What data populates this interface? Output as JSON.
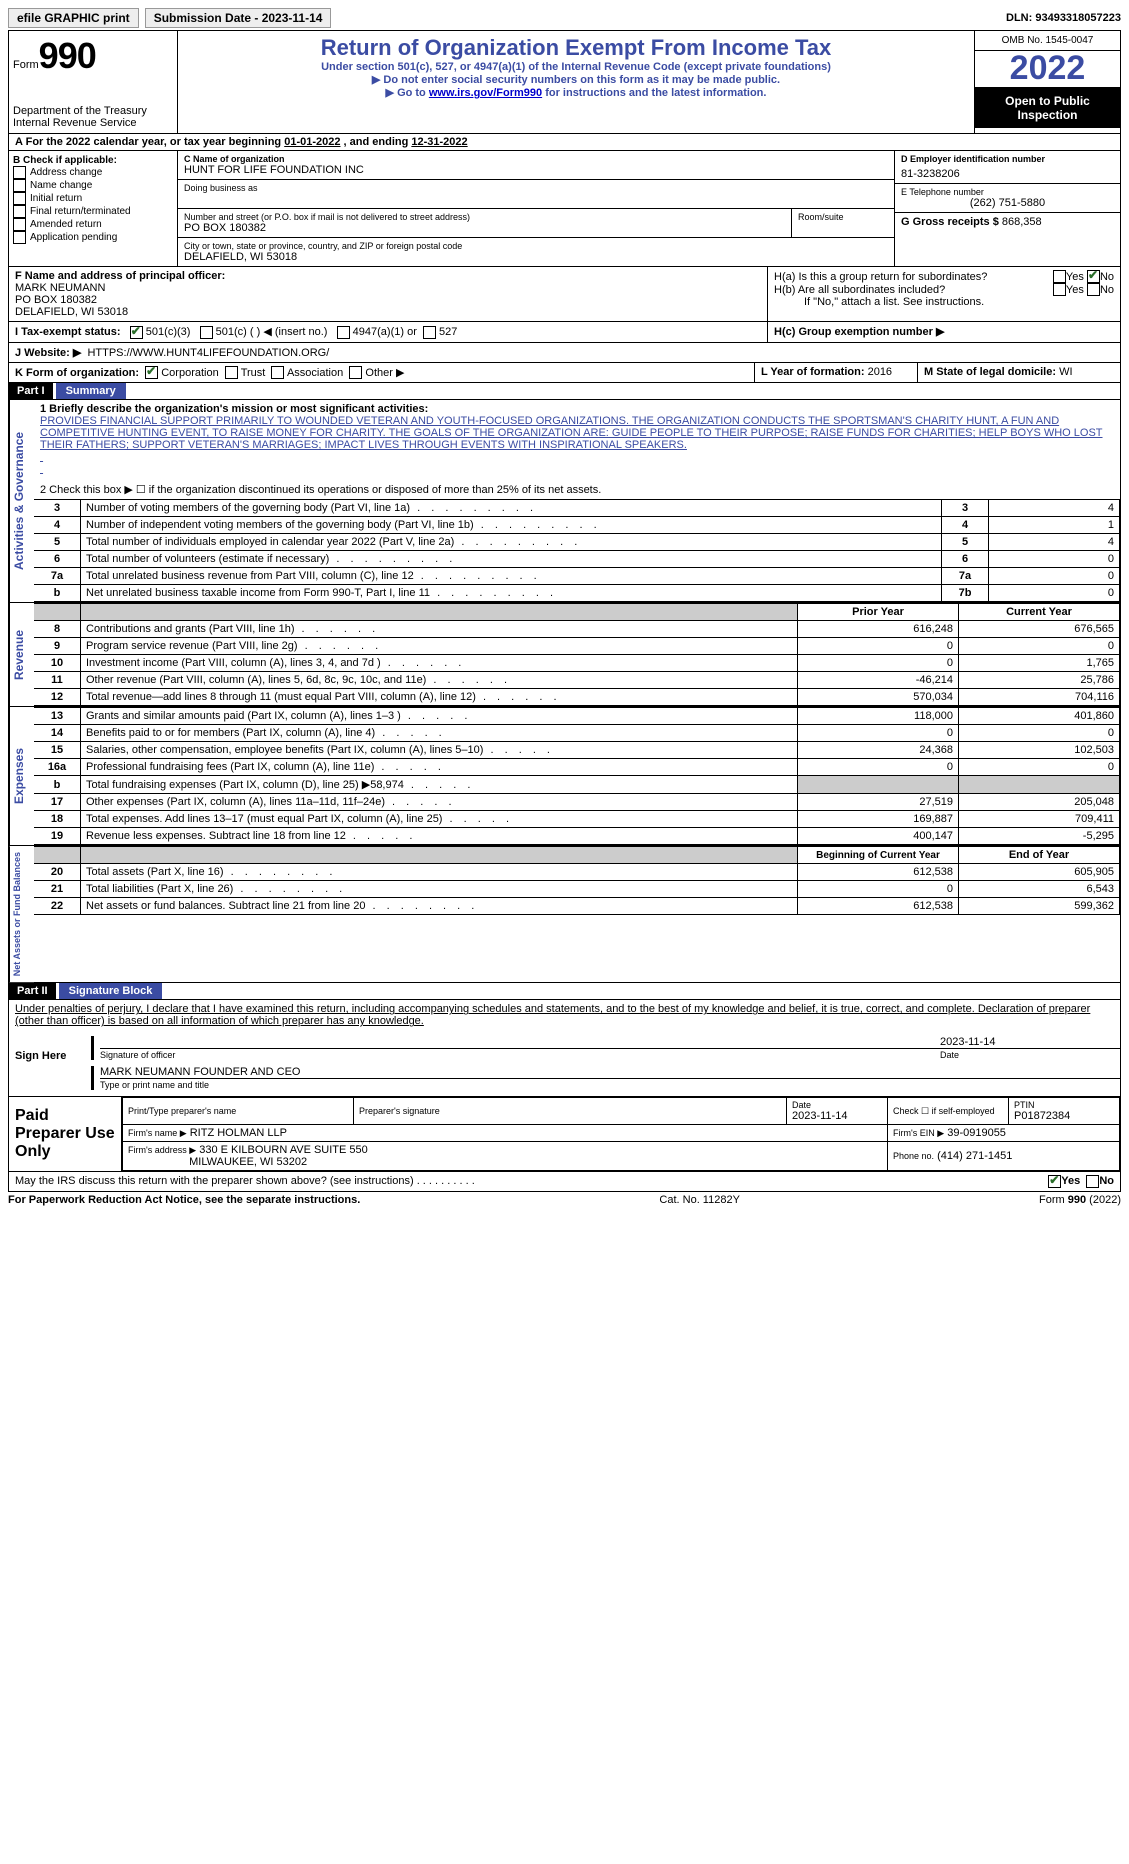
{
  "top": {
    "efile_label": "efile GRAPHIC print",
    "submission_date_label": "Submission Date - 2023-11-14",
    "dln_label": "DLN: 93493318057223"
  },
  "header": {
    "form_word": "Form",
    "form_no": "990",
    "dept": "Department of the Treasury",
    "irs": "Internal Revenue Service",
    "title": "Return of Organization Exempt From Income Tax",
    "subtitle": "Under section 501(c), 527, or 4947(a)(1) of the Internal Revenue Code (except private foundations)",
    "note1": "▶ Do not enter social security numbers on this form as it may be made public.",
    "note2_pre": "▶ Go to ",
    "note2_link": "www.irs.gov/Form990",
    "note2_post": " for instructions and the latest information.",
    "omb": "OMB No. 1545-0047",
    "year": "2022",
    "open": "Open to Public Inspection"
  },
  "A": {
    "text_pre": "For the 2022 calendar year, or tax year beginning ",
    "begin": "01-01-2022",
    "mid": " , and ending ",
    "end": "12-31-2022"
  },
  "B": {
    "label": "B Check if applicable:",
    "items": [
      "Address change",
      "Name change",
      "Initial return",
      "Final return/terminated",
      "Amended return",
      "Application pending"
    ]
  },
  "C": {
    "name_label": "C Name of organization",
    "name": "HUNT FOR LIFE FOUNDATION INC",
    "dba_label": "Doing business as",
    "street_label": "Number and street (or P.O. box if mail is not delivered to street address)",
    "room_label": "Room/suite",
    "street": "PO BOX 180382",
    "city_label": "City or town, state or province, country, and ZIP or foreign postal code",
    "city": "DELAFIELD, WI  53018"
  },
  "D": {
    "label": "D Employer identification number",
    "value": "81-3238206"
  },
  "E": {
    "label": "E Telephone number",
    "value": "(262) 751-5880"
  },
  "G": {
    "label": "G Gross receipts $",
    "value": "868,358"
  },
  "F": {
    "label": "F Name and address of principal officer:",
    "name": "MARK NEUMANN",
    "addr1": "PO BOX 180382",
    "addr2": "DELAFIELD, WI  53018"
  },
  "H": {
    "a_label": "H(a)  Is this a group return for subordinates?",
    "b_label": "H(b)  Are all subordinates included?",
    "b_note": "If \"No,\" attach a list. See instructions.",
    "c_label": "H(c)  Group exemption number ▶",
    "yes": "Yes",
    "no": "No"
  },
  "I": {
    "label": "I   Tax-exempt status:",
    "opts": [
      "501(c)(3)",
      "501(c) (   ) ◀ (insert no.)",
      "4947(a)(1) or",
      "527"
    ]
  },
  "J": {
    "label": "J   Website: ▶",
    "value": "HTTPS://WWW.HUNT4LIFEFOUNDATION.ORG/"
  },
  "K": {
    "label": "K Form of organization:",
    "opts": [
      "Corporation",
      "Trust",
      "Association",
      "Other ▶"
    ]
  },
  "L": {
    "label": "L Year of formation:",
    "value": "2016"
  },
  "M": {
    "label": "M State of legal domicile:",
    "value": "WI"
  },
  "part1": {
    "tag": "Part I",
    "title": "Summary",
    "line1_label": "1  Briefly describe the organization's mission or most significant activities:",
    "mission": "PROVIDES FINANCIAL SUPPORT PRIMARILY TO WOUNDED VETERAN AND YOUTH-FOCUSED ORGANIZATIONS. THE ORGANIZATION CONDUCTS THE SPORTSMAN'S CHARITY HUNT, A FUN AND COMPETITIVE HUNTING EVENT, TO RAISE MONEY FOR CHARITY. THE GOALS OF THE ORGANIZATION ARE: GUIDE PEOPLE TO THEIR PURPOSE; RAISE FUNDS FOR CHARITIES; HELP BOYS WHO LOST THEIR FATHERS; SUPPORT VETERAN'S MARRIAGES; IMPACT LIVES THROUGH EVENTS WITH INSPIRATIONAL SPEAKERS.",
    "line2": "2    Check this box ▶ ☐  if the organization discontinued its operations or disposed of more than 25% of its net assets.",
    "gov_rows": [
      {
        "n": "3",
        "text": "Number of voting members of the governing body (Part VI, line 1a)",
        "box": "3",
        "val": "4"
      },
      {
        "n": "4",
        "text": "Number of independent voting members of the governing body (Part VI, line 1b)",
        "box": "4",
        "val": "1"
      },
      {
        "n": "5",
        "text": "Total number of individuals employed in calendar year 2022 (Part V, line 2a)",
        "box": "5",
        "val": "4"
      },
      {
        "n": "6",
        "text": "Total number of volunteers (estimate if necessary)",
        "box": "6",
        "val": "0"
      },
      {
        "n": "7a",
        "text": "Total unrelated business revenue from Part VIII, column (C), line 12",
        "box": "7a",
        "val": "0"
      },
      {
        "n": " b",
        "text": "Net unrelated business taxable income from Form 990-T, Part I, line 11",
        "box": "7b",
        "val": "0"
      }
    ],
    "col_prior": "Prior Year",
    "col_current": "Current Year",
    "rev_rows": [
      {
        "n": "8",
        "text": "Contributions and grants (Part VIII, line 1h)",
        "p": "616,248",
        "c": "676,565"
      },
      {
        "n": "9",
        "text": "Program service revenue (Part VIII, line 2g)",
        "p": "0",
        "c": "0"
      },
      {
        "n": "10",
        "text": "Investment income (Part VIII, column (A), lines 3, 4, and 7d )",
        "p": "0",
        "c": "1,765"
      },
      {
        "n": "11",
        "text": "Other revenue (Part VIII, column (A), lines 5, 6d, 8c, 9c, 10c, and 11e)",
        "p": "-46,214",
        "c": "25,786"
      },
      {
        "n": "12",
        "text": "Total revenue—add lines 8 through 11 (must equal Part VIII, column (A), line 12)",
        "p": "570,034",
        "c": "704,116"
      }
    ],
    "exp_rows": [
      {
        "n": "13",
        "text": "Grants and similar amounts paid (Part IX, column (A), lines 1–3 )",
        "p": "118,000",
        "c": "401,860"
      },
      {
        "n": "14",
        "text": "Benefits paid to or for members (Part IX, column (A), line 4)",
        "p": "0",
        "c": "0"
      },
      {
        "n": "15",
        "text": "Salaries, other compensation, employee benefits (Part IX, column (A), lines 5–10)",
        "p": "24,368",
        "c": "102,503"
      },
      {
        "n": "16a",
        "text": "Professional fundraising fees (Part IX, column (A), line 11e)",
        "p": "0",
        "c": "0"
      },
      {
        "n": "b",
        "text": "Total fundraising expenses (Part IX, column (D), line 25) ▶58,974",
        "p": "GRAY",
        "c": "GRAY"
      },
      {
        "n": "17",
        "text": "Other expenses (Part IX, column (A), lines 11a–11d, 11f–24e)",
        "p": "27,519",
        "c": "205,048"
      },
      {
        "n": "18",
        "text": "Total expenses. Add lines 13–17 (must equal Part IX, column (A), line 25)",
        "p": "169,887",
        "c": "709,411"
      },
      {
        "n": "19",
        "text": "Revenue less expenses. Subtract line 18 from line 12",
        "p": "400,147",
        "c": "-5,295"
      }
    ],
    "na_header_p": "Beginning of Current Year",
    "na_header_c": "End of Year",
    "na_rows": [
      {
        "n": "20",
        "text": "Total assets (Part X, line 16)",
        "p": "612,538",
        "c": "605,905"
      },
      {
        "n": "21",
        "text": "Total liabilities (Part X, line 26)",
        "p": "0",
        "c": "6,543"
      },
      {
        "n": "22",
        "text": "Net assets or fund balances. Subtract line 21 from line 20",
        "p": "612,538",
        "c": "599,362"
      }
    ]
  },
  "side": {
    "gov": "Activities & Governance",
    "rev": "Revenue",
    "exp": "Expenses",
    "na": "Net Assets or Fund Balances"
  },
  "part2": {
    "tag": "Part II",
    "title": "Signature Block",
    "penalty": "Under penalties of perjury, I declare that I have examined this return, including accompanying schedules and statements, and to the best of my knowledge and belief, it is true, correct, and complete. Declaration of preparer (other than officer) is based on all information of which preparer has any knowledge.",
    "sign_here": "Sign Here",
    "sig_officer": "Signature of officer",
    "date_label": "Date",
    "sig_date": "2023-11-14",
    "officer_name": "MARK NEUMANN  FOUNDER AND CEO",
    "type_name": "Type or print name and title",
    "paid": "Paid Preparer Use Only",
    "print_name_h": "Print/Type preparer's name",
    "prep_sig_h": "Preparer's signature",
    "date_h": "Date",
    "prep_date": "2023-11-14",
    "check_self": "Check ☐ if self-employed",
    "ptin_h": "PTIN",
    "ptin": "P01872384",
    "firm_name_l": "Firm's name    ▶",
    "firm_name": "RITZ HOLMAN LLP",
    "firm_ein_l": "Firm's EIN ▶",
    "firm_ein": "39-0919055",
    "firm_addr_l": "Firm's address ▶",
    "firm_addr1": "330 E KILBOURN AVE SUITE 550",
    "firm_addr2": "MILWAUKEE, WI  53202",
    "phone_l": "Phone no.",
    "phone": "(414) 271-1451",
    "discuss": "May the IRS discuss this return with the preparer shown above? (see instructions)",
    "yes": "Yes",
    "no": "No"
  },
  "footer": {
    "left": "For Paperwork Reduction Act Notice, see the separate instructions.",
    "mid": "Cat. No. 11282Y",
    "right_pre": "Form ",
    "right_form": "990",
    "right_post": " (2022)"
  }
}
